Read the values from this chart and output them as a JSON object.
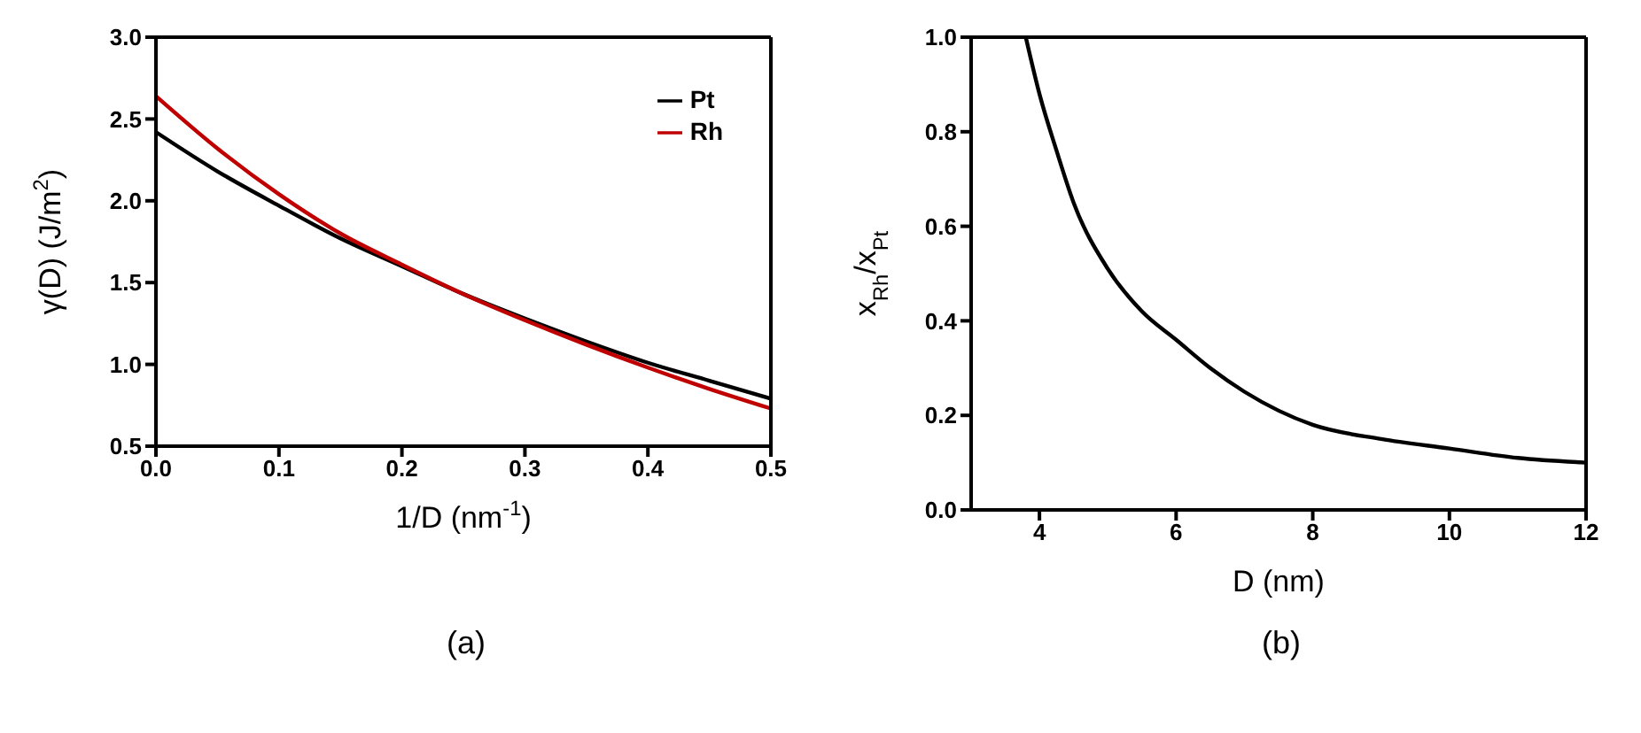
{
  "chart_data": [
    {
      "type": "line",
      "xlabel": "1/D (nm$^{-1}$)",
      "ylabel": "γ(D) (J/m$^{2}$)",
      "annotations": [
        "(a)"
      ],
      "xlim": [
        0,
        0.5
      ],
      "xticks": [
        {
          "value": 0,
          "label": "0.0"
        },
        0.1,
        0.2,
        0.3,
        0.4,
        0.5
      ],
      "ylim": [
        0.5,
        3.0
      ],
      "yticks": [
        0.5,
        {
          "value": 1,
          "label": "1.0"
        },
        1.5,
        {
          "value": 2,
          "label": "2.0"
        },
        2.5,
        {
          "value": 3,
          "label": "3.0"
        }
      ],
      "legend": "top right",
      "marker": "none",
      "line_style": "solid",
      "series": [
        {
          "name": "Pt",
          "color": "#000000",
          "x": [
            0,
            0.05,
            0.1,
            0.15,
            0.2,
            0.25,
            0.3,
            0.35,
            0.4,
            0.45,
            0.5
          ],
          "values": [
            2.42,
            2.18,
            1.97,
            1.77,
            1.6,
            1.43,
            1.28,
            1.14,
            1.01,
            0.9,
            0.79
          ]
        },
        {
          "name": "Rh",
          "color": "#c00000",
          "x": [
            0,
            0.05,
            0.1,
            0.15,
            0.2,
            0.25,
            0.3,
            0.35,
            0.4,
            0.45,
            0.5
          ],
          "values": [
            2.64,
            2.32,
            2.04,
            1.8,
            1.61,
            1.43,
            1.27,
            1.12,
            0.98,
            0.85,
            0.73
          ]
        }
      ]
    },
    {
      "type": "line",
      "xlabel": "D (nm)",
      "ylabel": "x$_{Rh}$/x$_{Pt}$",
      "annotations": [
        "(b)"
      ],
      "xlim": [
        3,
        12
      ],
      "xticks": [
        4,
        6,
        8,
        10,
        12
      ],
      "ylim": [
        0,
        1
      ],
      "yticks": [
        {
          "value": 0,
          "label": "0.0"
        },
        0.2,
        0.4,
        0.6,
        0.8,
        {
          "value": 1,
          "label": "1.0"
        }
      ],
      "legend": false,
      "marker": "none",
      "line_style": "solid",
      "series": [
        {
          "color": "#000000",
          "x": [
            3.8,
            4,
            4.25,
            4.5,
            5,
            5.5,
            6,
            6.5,
            7,
            8,
            9,
            10,
            11,
            12
          ],
          "values": [
            1.0,
            0.88,
            0.76,
            0.65,
            0.51,
            0.42,
            0.36,
            0.3,
            0.25,
            0.18,
            0.15,
            0.13,
            0.11,
            0.1
          ]
        }
      ]
    }
  ]
}
